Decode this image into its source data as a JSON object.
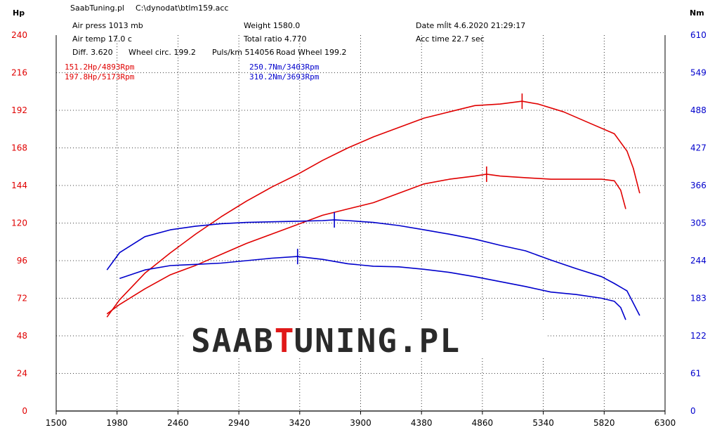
{
  "header": {
    "company": "SaabTuning.pl",
    "file_path": "C:\\dynodat\\btlm159.acc",
    "air_press": "Air press  1013 mb",
    "air_temp": "Air temp  17.0 c",
    "diff": "Diff.    3.620",
    "wheel_circ": "Wheel circ. 199.2",
    "puls_km": "Puls/km  514056",
    "road_wheel": "Road Wheel 199.2",
    "weight": "Weight   1580.0",
    "total_ratio": "Total ratio 4.770",
    "date": "Date mĺlt 4.6.2020 21:29:17",
    "acc_time": "Acc time   22.7 sec"
  },
  "annotations": {
    "hp_low": "151.2Hp/4893Rpm",
    "hp_high": "197.8Hp/5173Rpm",
    "nm_low": "250.7Nm/3403Rpm",
    "nm_high": "310.2Nm/3693Rpm"
  },
  "logo": {
    "part1": "SAAB",
    "part2": "T",
    "part3": "UNING.PL"
  },
  "colors": {
    "power": "#e00000",
    "torque": "#0000cc",
    "grid": "#000000"
  },
  "chart_data": {
    "type": "line",
    "left_axis_unit": "Hp",
    "right_axis_unit": "Nm",
    "xlim": [
      1500,
      6300
    ],
    "ylim_left": [
      0,
      240
    ],
    "ylim_right": [
      0,
      610
    ],
    "x_ticks": [
      1500,
      1980,
      2460,
      2940,
      3420,
      3900,
      4380,
      4860,
      5340,
      5820,
      6300
    ],
    "y_ticks_left": [
      0,
      24,
      48,
      72,
      96,
      120,
      144,
      168,
      192,
      216,
      240
    ],
    "y_ticks_right": [
      0,
      61,
      122,
      183,
      244,
      305,
      366,
      427,
      488,
      549,
      610
    ],
    "grid": true,
    "series": [
      {
        "axis": "left",
        "color": "#e00000",
        "x": [
          1900,
          2000,
          2200,
          2400,
          2600,
          2800,
          3000,
          3200,
          3400,
          3600,
          3800,
          4000,
          4200,
          4400,
          4600,
          4800,
          4893,
          5000,
          5200,
          5400,
          5600,
          5800,
          5900,
          5950,
          5990
        ],
        "y": [
          62,
          68,
          78,
          87,
          93,
          100,
          107,
          113,
          119,
          125,
          129,
          133,
          139,
          145,
          148,
          150,
          151.2,
          150,
          149,
          148,
          148,
          148,
          147,
          141,
          129
        ]
      },
      {
        "axis": "left",
        "color": "#e00000",
        "x": [
          1900,
          2000,
          2200,
          2400,
          2600,
          2800,
          3000,
          3200,
          3400,
          3600,
          3800,
          4000,
          4200,
          4400,
          4600,
          4800,
          5000,
          5173,
          5300,
          5500,
          5700,
          5900,
          6000,
          6050,
          6100
        ],
        "y": [
          60,
          71,
          88,
          101,
          113,
          124,
          134,
          143,
          151,
          160,
          168,
          175,
          181,
          187,
          191,
          195,
          196,
          197.8,
          196,
          191,
          184,
          177,
          166,
          155,
          139
        ]
      },
      {
        "axis": "right",
        "color": "#0000cc",
        "x": [
          2000,
          2200,
          2400,
          2600,
          2800,
          3000,
          3200,
          3403,
          3600,
          3800,
          4000,
          4200,
          4400,
          4600,
          4800,
          5000,
          5200,
          5400,
          5600,
          5800,
          5900,
          5950,
          5990
        ],
        "y": [
          215,
          229,
          236,
          238,
          240,
          244,
          248,
          250.7,
          246,
          239,
          235,
          234,
          230,
          225,
          218,
          210,
          202,
          193,
          189,
          183,
          178,
          168,
          148
        ]
      },
      {
        "axis": "right",
        "color": "#0000cc",
        "x": [
          1900,
          2000,
          2200,
          2400,
          2600,
          2800,
          3000,
          3200,
          3400,
          3600,
          3693,
          3800,
          4000,
          4200,
          4400,
          4600,
          4800,
          5000,
          5200,
          5400,
          5600,
          5800,
          5900,
          6000,
          6100
        ],
        "y": [
          229,
          257,
          283,
          294,
          300,
          304,
          306,
          307,
          308,
          309,
          310.2,
          309,
          306,
          301,
          294,
          287,
          279,
          269,
          260,
          245,
          231,
          218,
          207,
          195,
          155
        ]
      }
    ],
    "markers": [
      {
        "axis": "left",
        "x": 4893,
        "y": 151.2,
        "color": "#e00000"
      },
      {
        "axis": "left",
        "x": 5173,
        "y": 197.8,
        "color": "#e00000"
      },
      {
        "axis": "right",
        "x": 3403,
        "y": 250.7,
        "color": "#0000cc"
      },
      {
        "axis": "right",
        "x": 3693,
        "y": 310.2,
        "color": "#0000cc"
      }
    ]
  }
}
